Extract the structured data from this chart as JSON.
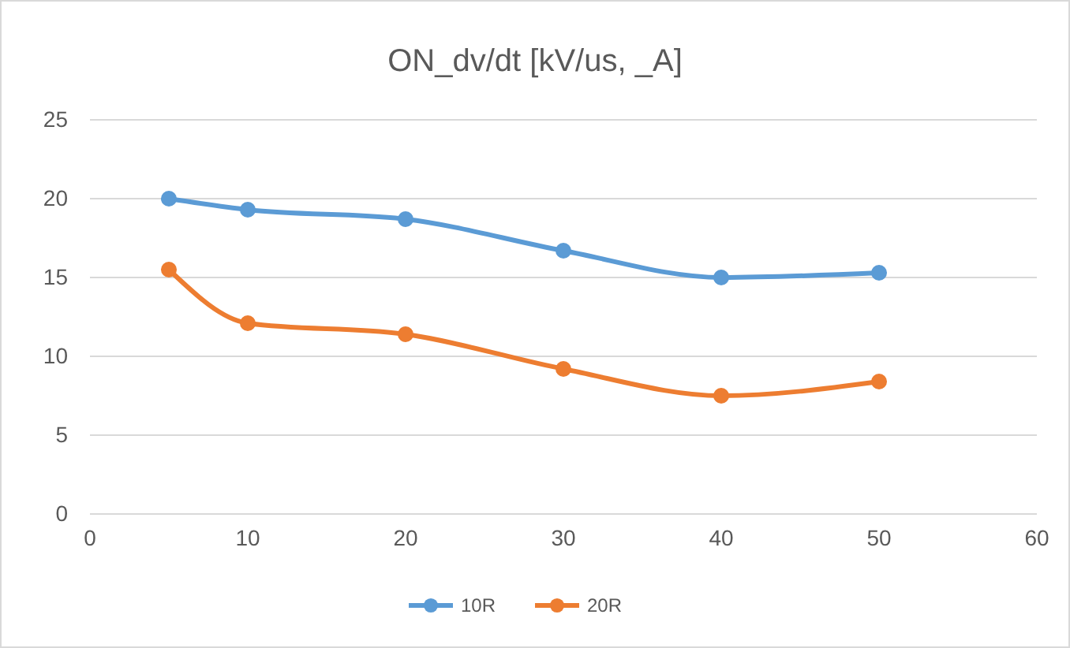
{
  "chart_data": {
    "type": "line",
    "title": "ON_dv/dt [kV/us, _A]",
    "x": [
      5,
      10,
      20,
      30,
      40,
      50
    ],
    "series": [
      {
        "name": "10R",
        "color": "#5b9bd5",
        "values": [
          20,
          19.3,
          18.7,
          16.7,
          15,
          15.3
        ]
      },
      {
        "name": "20R",
        "color": "#ed7d31",
        "values": [
          15.5,
          12.1,
          11.4,
          9.2,
          7.5,
          8.4
        ]
      }
    ],
    "xlim": [
      0,
      60
    ],
    "xticks": [
      0,
      10,
      20,
      30,
      40,
      50,
      60
    ],
    "ylim": [
      0,
      25
    ],
    "yticks": [
      0,
      5,
      10,
      15,
      20,
      25
    ],
    "grid": "y",
    "legend": "bottom",
    "marker": "circle",
    "line_style": "solid"
  }
}
